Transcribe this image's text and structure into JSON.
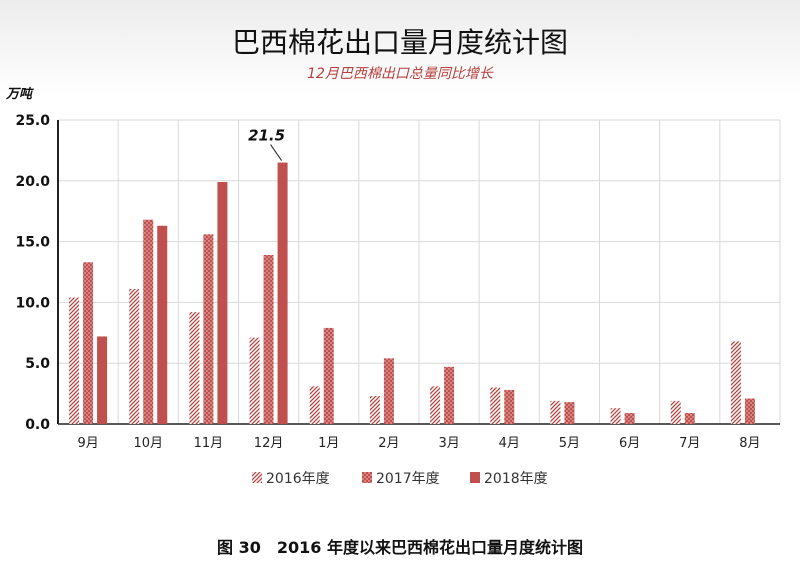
{
  "caption": "图 30　2016 年度以来巴西棉花出口量月度统计图",
  "chart_data": {
    "type": "bar",
    "title": "巴西棉花出口量月度统计图",
    "subtitle": "12月巴西棉出口总量同比增长",
    "ylabel": "万吨",
    "xlabel": "",
    "ylim": [
      0,
      25
    ],
    "yticks": [
      "0.0",
      "5.0",
      "10.0",
      "15.0",
      "20.0",
      "25.0"
    ],
    "grid": true,
    "legend_position": "bottom",
    "categories": [
      "9月",
      "10月",
      "11月",
      "12月",
      "1月",
      "2月",
      "3月",
      "4月",
      "5月",
      "6月",
      "7月",
      "8月"
    ],
    "series": [
      {
        "name": "2016年度",
        "values": [
          10.4,
          11.1,
          9.2,
          7.1,
          3.1,
          2.3,
          3.1,
          3.0,
          1.9,
          1.3,
          1.9,
          6.8
        ]
      },
      {
        "name": "2017年度",
        "values": [
          13.3,
          16.8,
          15.6,
          13.9,
          7.9,
          5.4,
          4.7,
          2.8,
          1.8,
          0.9,
          0.9,
          2.1
        ]
      },
      {
        "name": "2018年度",
        "values": [
          7.2,
          16.3,
          19.9,
          21.5,
          null,
          null,
          null,
          null,
          null,
          null,
          null,
          null
        ]
      }
    ],
    "annotations": [
      {
        "category": "12月",
        "series": "2018年度",
        "text": "21.5"
      }
    ],
    "colors": {
      "bar": "#c0504d",
      "bar_dark": "#a93c39",
      "background_top": "#eeeeee"
    }
  }
}
